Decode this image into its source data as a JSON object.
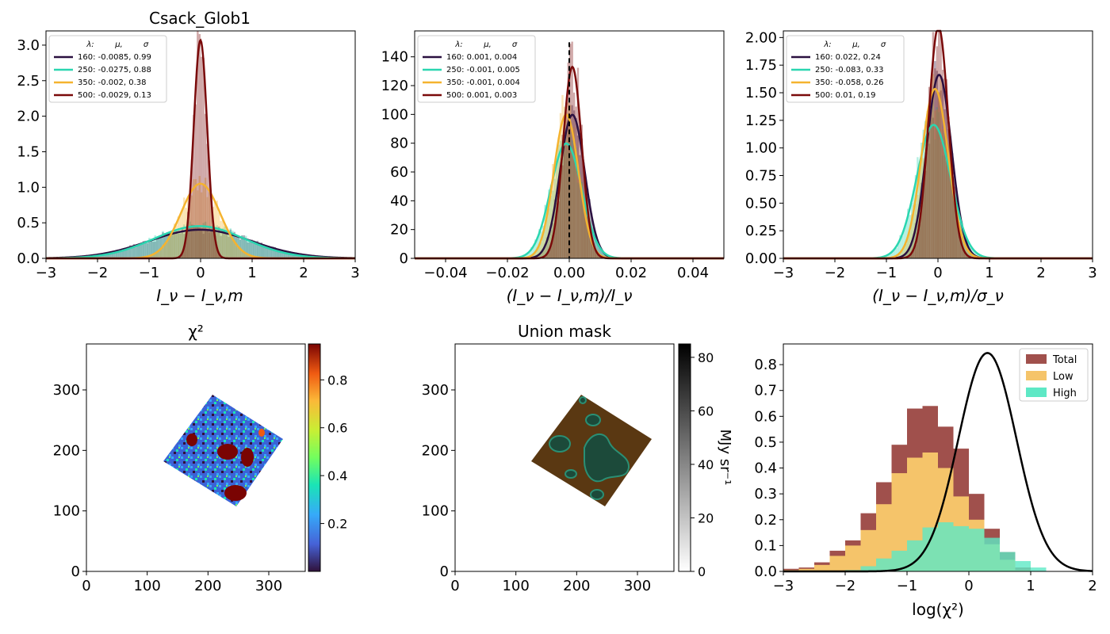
{
  "chart_data": [
    {
      "type": "histogram",
      "title": "Csack_Glob1",
      "xlabel": "I_ν − I_ν,m",
      "xlim": [
        -3,
        3
      ],
      "ylim": [
        0,
        3.2
      ],
      "xticks": [
        "−3",
        "−2",
        "−1",
        "0",
        "1",
        "2",
        "3"
      ],
      "yticks": [
        "0.0",
        "0.5",
        "1.0",
        "1.5",
        "2.0",
        "2.5",
        "3.0"
      ],
      "legend_header": [
        "λ:",
        "μ,",
        "σ"
      ],
      "legend_position": "upper-left",
      "series": [
        {
          "name": "160: -0.0085,  0.99",
          "mu": -0.0085,
          "sigma": 0.99,
          "color": "#2a1040"
        },
        {
          "name": "250: -0.0275,  0.88",
          "mu": -0.0275,
          "sigma": 0.88,
          "color": "#2ad6b0"
        },
        {
          "name": "350: -0.002,  0.38",
          "mu": -0.002,
          "sigma": 0.38,
          "color": "#f5b32f"
        },
        {
          "name": "500: -0.0029,  0.13",
          "mu": -0.0029,
          "sigma": 0.13,
          "color": "#7a0a0a"
        }
      ]
    },
    {
      "type": "histogram",
      "title": "",
      "xlabel": "(I_ν − I_ν,m)/I_ν",
      "xlim": [
        -0.05,
        0.05
      ],
      "ylim": [
        0,
        158
      ],
      "xticks": [
        "−0.04",
        "−0.02",
        "0.00",
        "0.02",
        "0.04"
      ],
      "yticks": [
        "0",
        "20",
        "40",
        "60",
        "80",
        "100",
        "120",
        "140"
      ],
      "vline": 0,
      "legend_header": [
        "λ:",
        "μ,",
        "σ"
      ],
      "legend_position": "upper-left",
      "series": [
        {
          "name": "160: 0.001,  0.004",
          "mu": 0.001,
          "sigma": 0.004,
          "color": "#2a1040"
        },
        {
          "name": "250: -0.001,  0.005",
          "mu": -0.001,
          "sigma": 0.005,
          "color": "#2ad6b0"
        },
        {
          "name": "350: -0.001,  0.004",
          "mu": -0.001,
          "sigma": 0.004,
          "color": "#f5b32f"
        },
        {
          "name": "500: 0.001,  0.003",
          "mu": 0.001,
          "sigma": 0.003,
          "color": "#7a0a0a"
        }
      ]
    },
    {
      "type": "histogram",
      "title": "",
      "xlabel": "(I_ν − I_ν,m)/σ_ν",
      "xlim": [
        -3,
        3
      ],
      "ylim": [
        0,
        2.06
      ],
      "xticks": [
        "−3",
        "−2",
        "−1",
        "0",
        "1",
        "2",
        "3"
      ],
      "yticks": [
        "0.00",
        "0.25",
        "0.50",
        "0.75",
        "1.00",
        "1.25",
        "1.50",
        "1.75",
        "2.00"
      ],
      "legend_header": [
        "λ:",
        "μ,",
        "σ"
      ],
      "legend_position": "upper-left",
      "series": [
        {
          "name": "160: 0.022,  0.24",
          "mu": 0.022,
          "sigma": 0.24,
          "color": "#2a1040"
        },
        {
          "name": "250: -0.083,  0.33",
          "mu": -0.083,
          "sigma": 0.33,
          "color": "#2ad6b0"
        },
        {
          "name": "350: -0.058,  0.26",
          "mu": -0.058,
          "sigma": 0.26,
          "color": "#f5b32f"
        },
        {
          "name": "500: 0.01,  0.19",
          "mu": 0.01,
          "sigma": 0.19,
          "color": "#7a0a0a"
        }
      ]
    },
    {
      "type": "heatmap",
      "title": "χ²",
      "xlim": [
        0,
        360
      ],
      "ylim": [
        0,
        376
      ],
      "xticks": [
        "0",
        "100",
        "200",
        "300"
      ],
      "yticks": [
        "0",
        "100",
        "200",
        "300"
      ],
      "colorbar_ticks": [
        "0.2",
        "0.4",
        "0.6",
        "0.8"
      ],
      "colorbar_range": [
        0.0,
        0.95
      ],
      "colormap": "turbo"
    },
    {
      "type": "heatmap",
      "title": "Union mask",
      "xlim": [
        0,
        360
      ],
      "ylim": [
        0,
        376
      ],
      "xticks": [
        "0",
        "100",
        "200",
        "300"
      ],
      "yticks": [
        "0",
        "100",
        "200",
        "300"
      ],
      "colorbar_ticks": [
        "0",
        "20",
        "40",
        "60",
        "80"
      ],
      "colorbar_range": [
        0,
        85
      ],
      "colorbar_label": "MJy sr⁻¹",
      "colormap": "gray_r"
    },
    {
      "type": "histogram",
      "title": "",
      "xlabel": "log(χ²)",
      "xlim": [
        -3,
        2
      ],
      "ylim": [
        0,
        0.88
      ],
      "xticks": [
        "−3",
        "−2",
        "−1",
        "0",
        "1",
        "2"
      ],
      "yticks": [
        "0.0",
        "0.1",
        "0.2",
        "0.3",
        "0.4",
        "0.5",
        "0.6",
        "0.7",
        "0.8"
      ],
      "bin_edges": [
        -3.0,
        -2.75,
        -2.5,
        -2.25,
        -2.0,
        -1.75,
        -1.5,
        -1.25,
        -1.0,
        -0.75,
        -0.5,
        -0.25,
        0.0,
        0.25,
        0.5,
        0.75,
        1.0,
        1.25
      ],
      "legend_position": "upper-right",
      "series": [
        {
          "name": "Total",
          "color": "#a0504c",
          "values": [
            0.01,
            0.015,
            0.035,
            0.08,
            0.12,
            0.225,
            0.345,
            0.49,
            0.63,
            0.64,
            0.56,
            0.475,
            0.3,
            0.165,
            0.075,
            0.015,
            0.0
          ]
        },
        {
          "name": "Low",
          "color": "#f5c46a",
          "values": [
            0.005,
            0.01,
            0.025,
            0.06,
            0.1,
            0.16,
            0.26,
            0.38,
            0.44,
            0.46,
            0.4,
            0.29,
            0.2,
            0.105,
            0.045,
            0.005,
            0.0
          ]
        },
        {
          "name": "High",
          "color": "#5ee8c5",
          "values": [
            0.0,
            0.0,
            0.0,
            0.0,
            0.005,
            0.02,
            0.05,
            0.08,
            0.12,
            0.17,
            0.19,
            0.175,
            0.165,
            0.13,
            0.075,
            0.04,
            0.015
          ]
        }
      ],
      "curve": {
        "color": "#000000",
        "mu": 0.3,
        "sigma": 0.47,
        "peak": 0.845
      }
    }
  ]
}
